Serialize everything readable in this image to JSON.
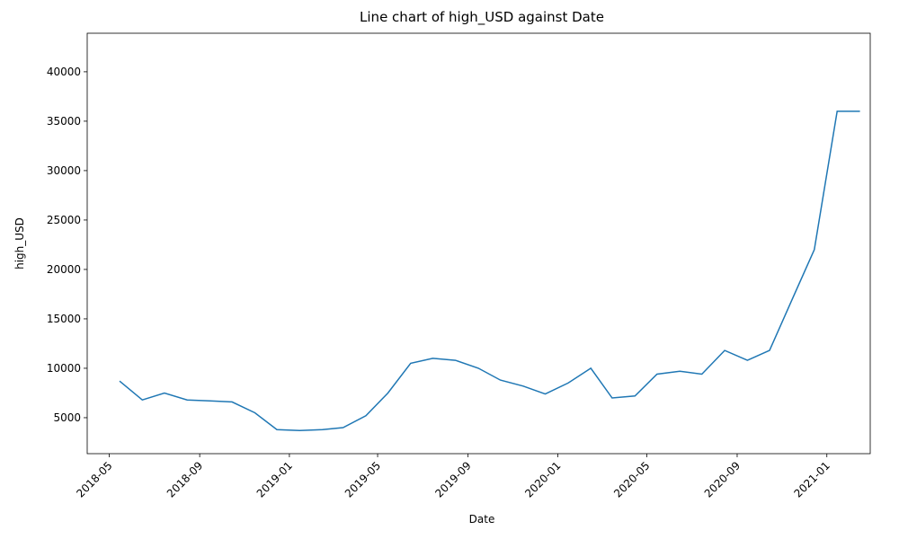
{
  "chart_data": {
    "type": "line",
    "title": "Line chart of high_USD against Date",
    "x_label": "Date",
    "y_label": "high_USD",
    "x": [
      "2018-05",
      "2018-06",
      "2018-07",
      "2018-08",
      "2018-09",
      "2018-10",
      "2018-11",
      "2018-12",
      "2019-01",
      "2019-02",
      "2019-03",
      "2019-04",
      "2019-05",
      "2019-06",
      "2019-07",
      "2019-08",
      "2019-09",
      "2019-10",
      "2019-11",
      "2019-12",
      "2020-01",
      "2020-02",
      "2020-03",
      "2020-04",
      "2020-05",
      "2020-06",
      "2020-07",
      "2020-08",
      "2020-09",
      "2020-10",
      "2020-11",
      "2020-12",
      "2021-01",
      "2021-02"
    ],
    "series": [
      {
        "name": "high_USD",
        "color": "#1f77b4",
        "values": [
          8700,
          6800,
          7500,
          6800,
          6700,
          6600,
          5500,
          3800,
          3700,
          3800,
          4000,
          5200,
          7500,
          10500,
          11000,
          10800,
          10000,
          8800,
          8200,
          7400,
          8500,
          10000,
          7000,
          7200,
          9400,
          9700,
          9400,
          11800,
          10800,
          11800,
          17000,
          22000,
          36000,
          36000
        ]
      }
    ],
    "xlim": [
      "2018-04",
      "2021-03"
    ],
    "xticks": [
      "2018-05",
      "2018-09",
      "2019-01",
      "2019-05",
      "2019-09",
      "2020-01",
      "2020-05",
      "2020-09",
      "2021-01"
    ],
    "ylim": [
      1360,
      43900
    ],
    "yticks": [
      5000,
      10000,
      15000,
      20000,
      25000,
      30000,
      35000,
      40000
    ],
    "grid": false
  }
}
